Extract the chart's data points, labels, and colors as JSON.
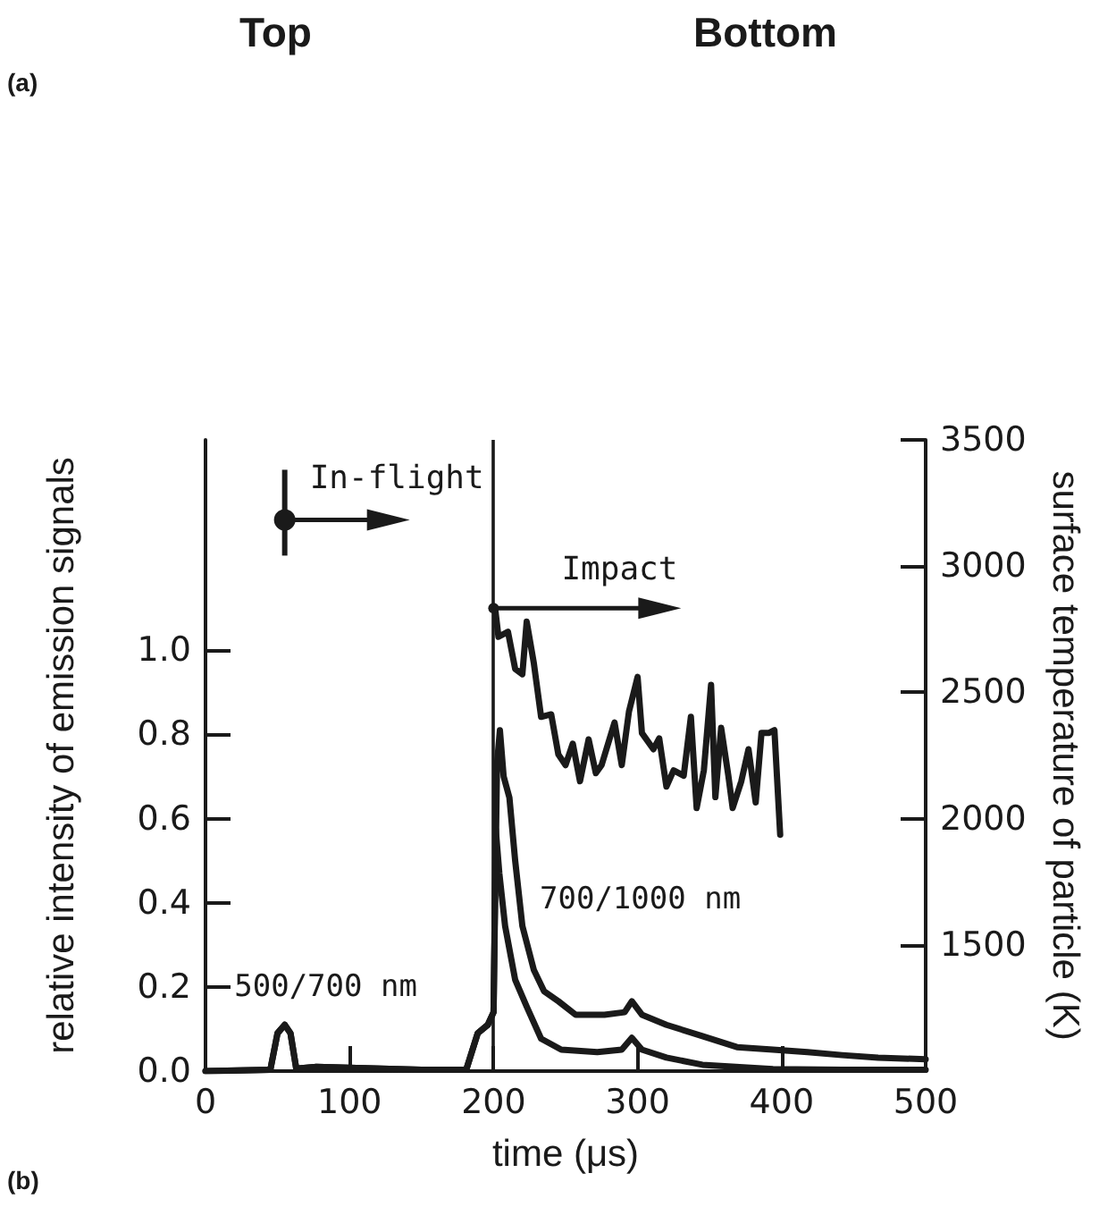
{
  "chart_data": {
    "type": "line",
    "xlabel": "time (μs)",
    "ylabel": "relative intensity of emission signals",
    "y2label": "surface temperature of particle (K)",
    "xlim": [
      0,
      500
    ],
    "xticks": [
      0,
      100,
      200,
      300,
      400,
      500
    ],
    "ylim": [
      0,
      1.5
    ],
    "yticks": [
      {
        "value": 0,
        "label": "0.0"
      },
      {
        "value": 0.2,
        "label": "0.2"
      },
      {
        "value": 0.4,
        "label": "0.4"
      },
      {
        "value": 0.6,
        "label": "0.6"
      },
      {
        "value": 0.8,
        "label": "0.8"
      },
      {
        "value": 1,
        "label": "1.0"
      }
    ],
    "y2lim": [
      1000,
      3500
    ],
    "y2ticks": [
      1500,
      2000,
      2500,
      3000,
      3500
    ],
    "grid": false,
    "legend": false,
    "marker": "none",
    "line_style": "solid",
    "series": [
      {
        "name": "500/700 nm",
        "color": "#1a1a1a",
        "x": [
          0,
          45,
          50,
          55,
          59,
          63,
          77,
          150,
          181,
          189,
          196,
          200,
          201.5,
          204,
          208,
          215,
          223,
          233,
          247,
          272,
          289,
          296,
          303,
          320,
          345,
          394,
          442,
          500
        ],
        "values": [
          0,
          0.003,
          0.09,
          0.11,
          0.09,
          0.006,
          0.01,
          0.003,
          0.003,
          0.09,
          0.11,
          0.14,
          0.575,
          0.47,
          0.345,
          0.217,
          0.153,
          0.077,
          0.051,
          0.045,
          0.051,
          0.079,
          0.051,
          0.032,
          0.015,
          0.005,
          0.003,
          0.003
        ]
      },
      {
        "name": "700/1000 nm",
        "color": "#1a1a1a",
        "x": [
          0,
          45,
          50,
          55,
          59,
          63,
          77,
          150,
          181,
          189,
          196,
          200,
          202.4,
          204.4,
          207,
          211,
          215,
          220,
          228,
          235,
          245,
          257,
          277,
          291,
          296,
          303,
          320,
          345,
          369,
          394,
          418,
          442,
          467,
          500
        ],
        "values": [
          0,
          0.003,
          0.09,
          0.11,
          0.09,
          0.006,
          0.01,
          0.003,
          0.003,
          0.09,
          0.11,
          0.14,
          0.73,
          0.81,
          0.7,
          0.65,
          0.5,
          0.345,
          0.24,
          0.19,
          0.166,
          0.134,
          0.134,
          0.14,
          0.166,
          0.134,
          0.11,
          0.083,
          0.057,
          0.051,
          0.045,
          0.038,
          0.032,
          0.028
        ]
      },
      {
        "axis": "y2",
        "color": "#1a1a1a",
        "x": [
          201,
          203.4,
          210,
          215,
          220,
          223,
          228,
          233,
          240,
          245,
          250,
          255,
          260,
          266,
          271,
          275,
          284,
          289,
          294,
          300,
          303,
          311,
          315,
          320,
          325,
          332,
          337,
          341,
          346,
          351,
          354,
          358,
          363,
          366,
          372,
          377,
          382,
          386,
          391,
          395,
          399
        ],
        "values": [
          2837,
          2720,
          2740,
          2593,
          2572,
          2780,
          2614,
          2403,
          2413,
          2254,
          2212,
          2297,
          2148,
          2314,
          2180,
          2212,
          2381,
          2212,
          2424,
          2561,
          2339,
          2275,
          2318,
          2127,
          2191,
          2170,
          2403,
          2042,
          2191,
          2530,
          2085,
          2360,
          2170,
          2042,
          2148,
          2275,
          2064,
          2339,
          2339,
          2350,
          1936
        ]
      }
    ],
    "ref_lines": [
      {
        "axis": "x",
        "value": 200,
        "color": "#1a1a1a",
        "line_style": "solid"
      }
    ],
    "annotations": [
      "Top",
      "Bottom",
      "(a)",
      "(b)",
      {
        "text": "In-flight",
        "x": 55
      },
      {
        "text": "Impact",
        "x": 200
      }
    ]
  }
}
